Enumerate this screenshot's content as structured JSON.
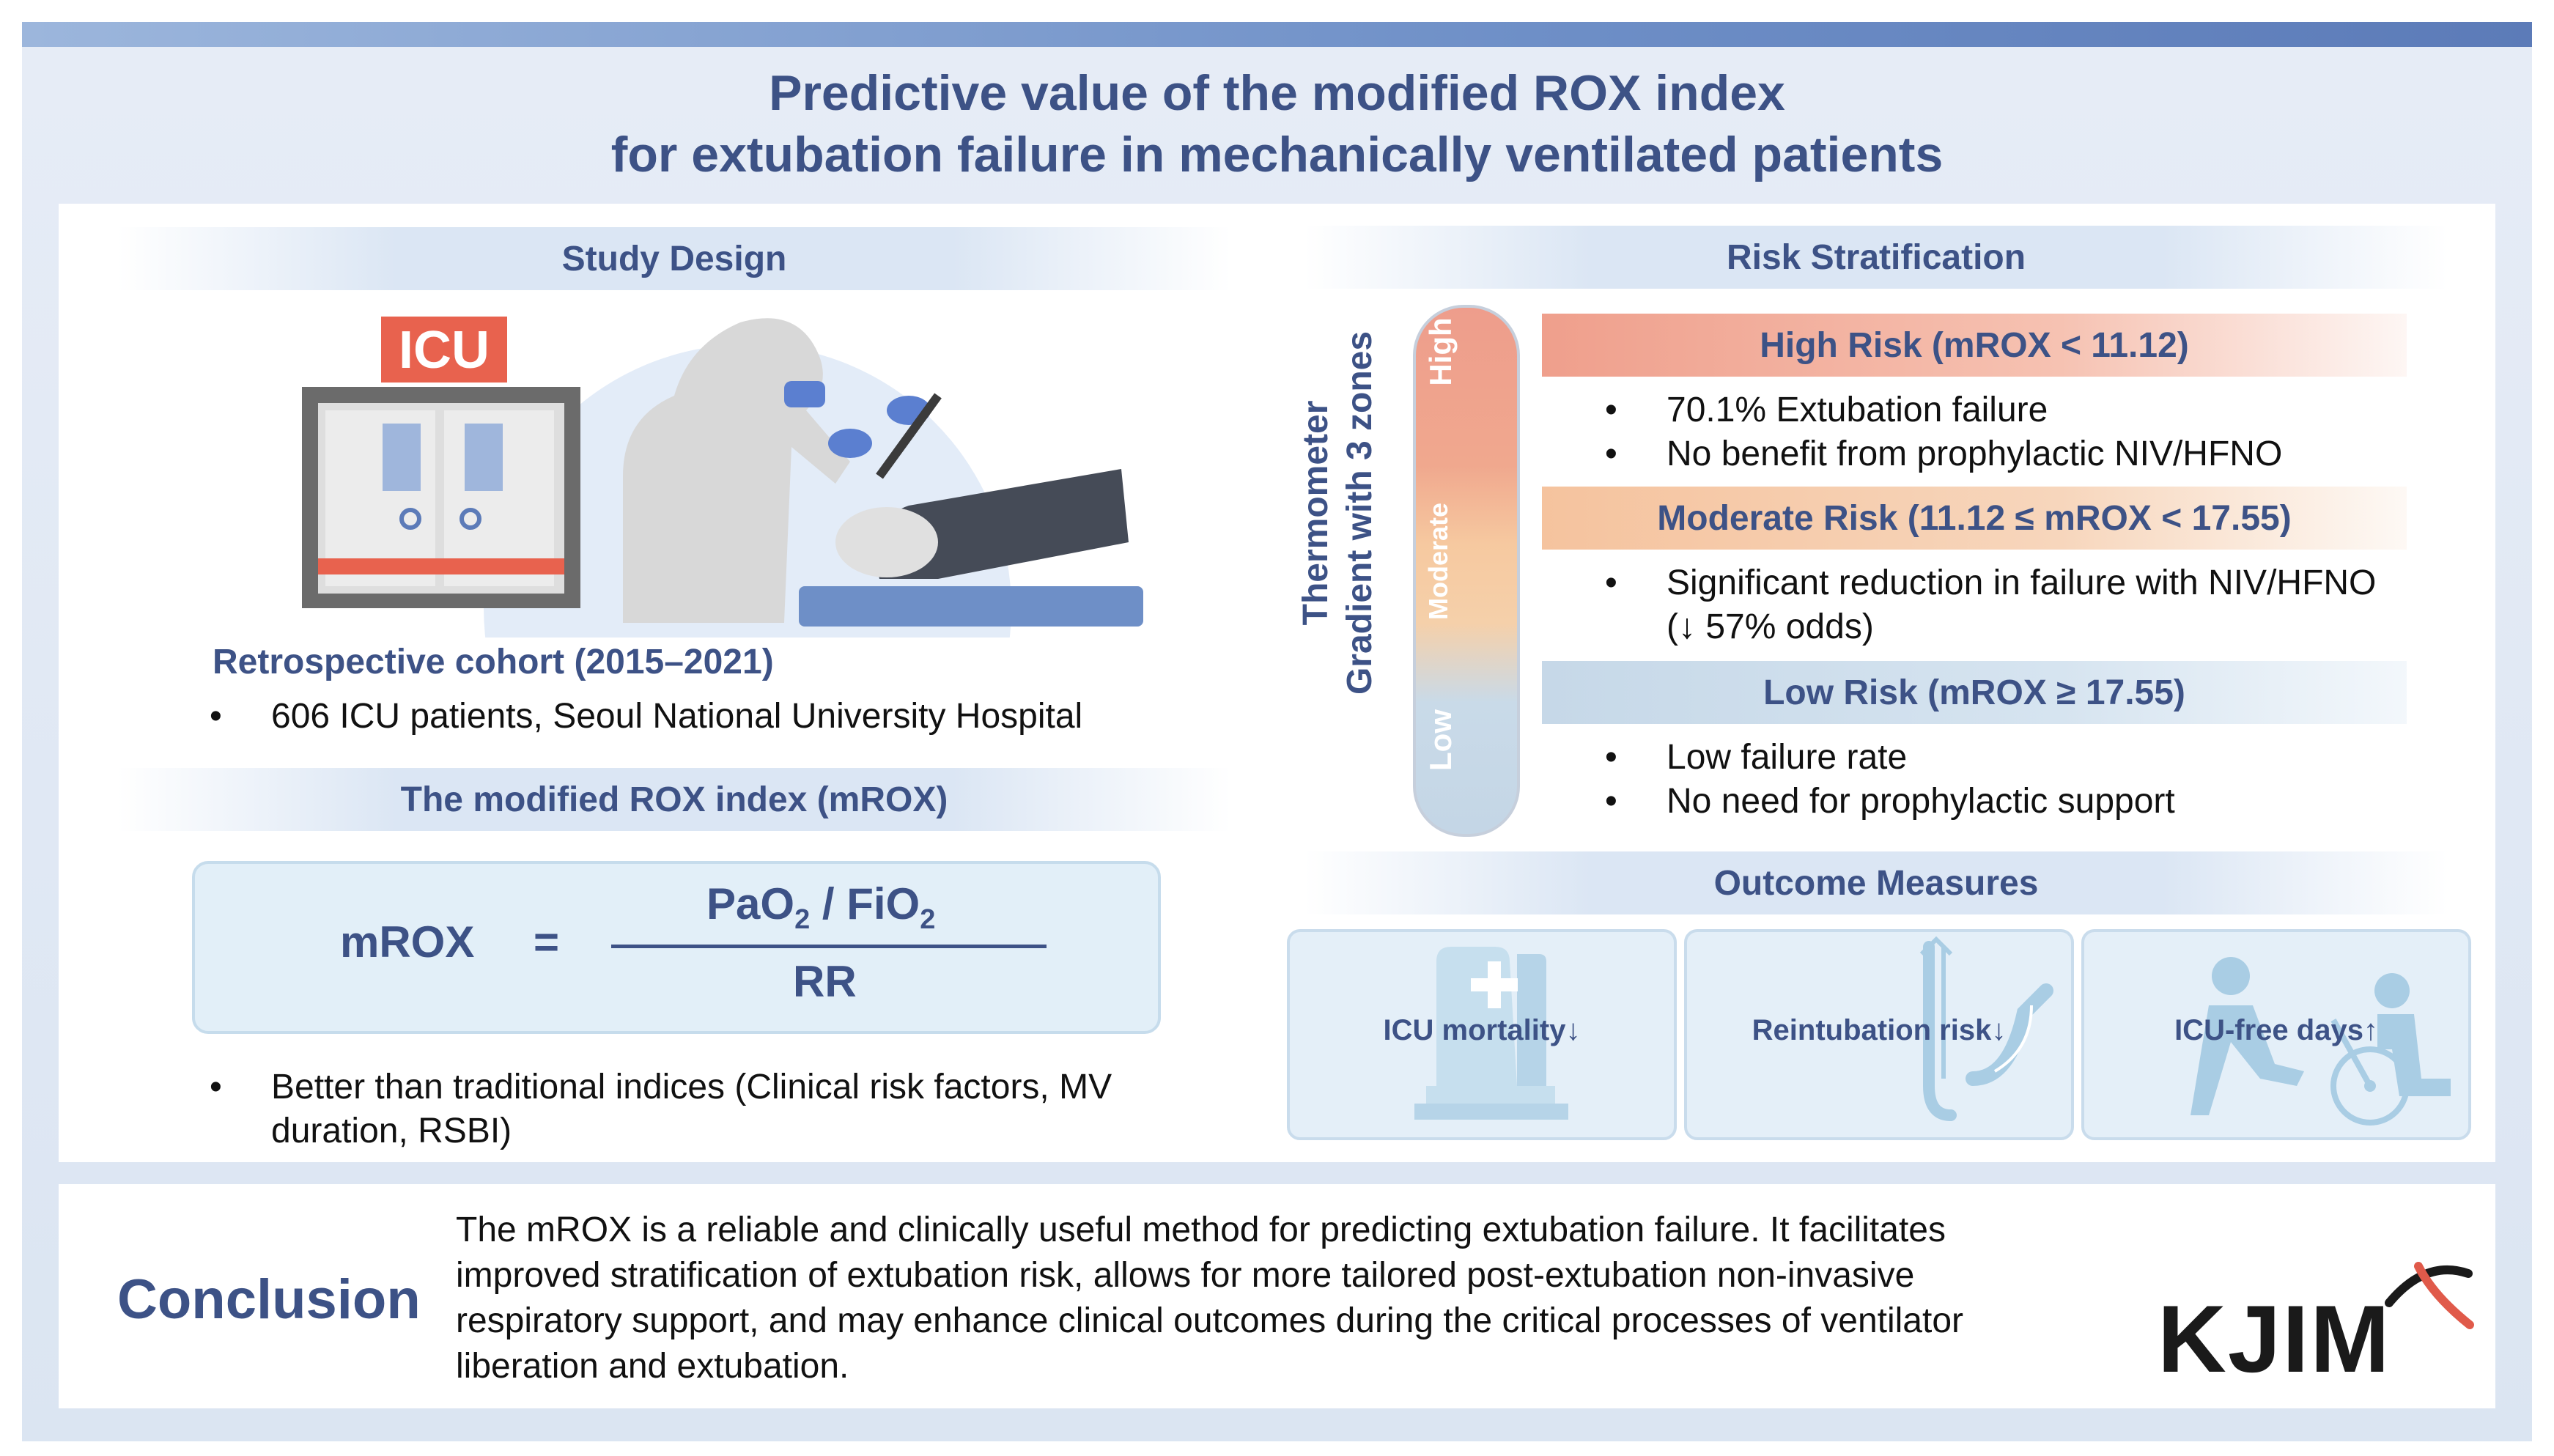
{
  "title": {
    "line1": "Predictive value of the modified ROX index",
    "line2": "for extubation failure in mechanically ventilated patients"
  },
  "study_design": {
    "heading": "Study Design",
    "icu_sign": "ICU",
    "cohort_label": "Retrospective cohort (2015–2021)",
    "bullet_patients": "606 ICU patients, Seoul National University Hospital"
  },
  "mrox": {
    "heading": "The modified ROX index (mROX)",
    "lhs": "mROX",
    "equals": "=",
    "numerator_pao": "PaO",
    "numerator_sub1": "2",
    "numerator_slash": " / FiO",
    "numerator_sub2": "2",
    "denominator": "RR",
    "bullet_line1": "Better than traditional indices (Clinical risk factors, MV",
    "bullet_line2": "duration, RSBI)"
  },
  "risk": {
    "heading": "Risk Stratification",
    "thermometer_line1": "Thermometer",
    "thermometer_line2": "Gradient with 3 zones",
    "zone_high": "High",
    "zone_moderate": "Moderate",
    "zone_low": "Low",
    "high_title": "High Risk (mROX < 11.12)",
    "high_b1": "70.1% Extubation failure",
    "high_b2": "No benefit from prophylactic NIV/HFNO",
    "mod_title": "Moderate Risk (11.12 ≤ mROX < 17.55)",
    "mod_b1": "Significant reduction in failure with NIV/HFNO",
    "mod_b1_cont": "(↓ 57% odds)",
    "low_title": "Low Risk (mROX ≥ 17.55)",
    "low_b1": "Low failure rate",
    "low_b2": "No need for prophylactic support",
    "bullet_char": "•"
  },
  "outcomes": {
    "heading": "Outcome Measures",
    "items": [
      {
        "label": "ICU mortality↓"
      },
      {
        "label": "Reintubation risk↓"
      },
      {
        "label": "ICU-free days↑"
      }
    ]
  },
  "conclusion": {
    "heading": "Conclusion",
    "text": "The mROX is a reliable and clinically useful method for predicting extubation failure. It facilitates improved stratification of extubation risk, allows for more tailored post-extubation non-invasive respiratory support, and may enhance clinical outcomes during the critical processes of ventilator liberation and extubation."
  },
  "logo": "KJIM",
  "colors": {
    "title": "#3d5286",
    "high": "#ee9d8c",
    "moderate": "#f5c9a0",
    "low": "#c7d9e8",
    "accent_red": "#e05a4a"
  }
}
